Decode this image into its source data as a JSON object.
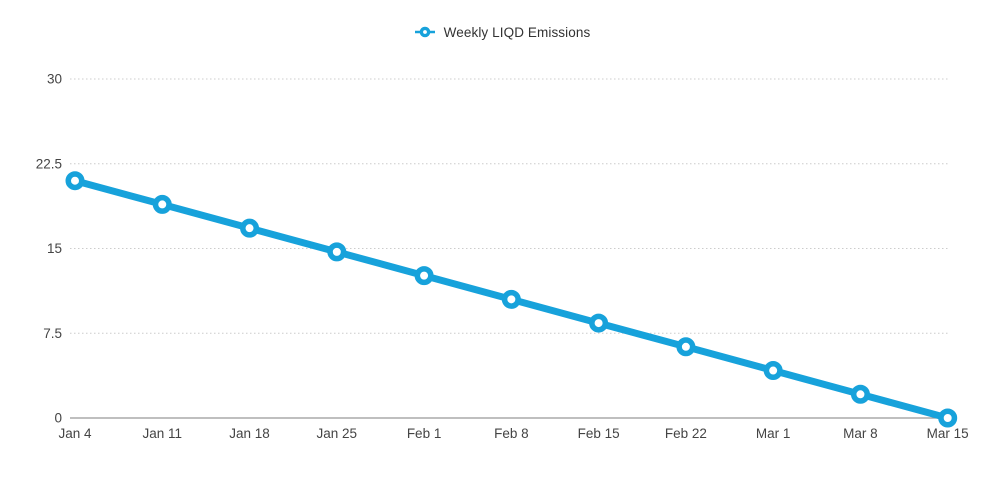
{
  "legend": {
    "label": "Weekly LIQD Emissions"
  },
  "colors": {
    "series": "#17A2DB",
    "grid": "#cccccc",
    "axis_line": "#999999",
    "tick_label": "#444444",
    "legend_text": "#333333",
    "background": "#ffffff",
    "marker_fill": "#ffffff"
  },
  "chart_data": {
    "type": "line",
    "title": "",
    "xlabel": "",
    "ylabel": "",
    "categories": [
      "Jan 4",
      "Jan 11",
      "Jan 18",
      "Jan 25",
      "Feb 1",
      "Feb 8",
      "Feb 15",
      "Feb 22",
      "Mar 1",
      "Mar 8",
      "Mar 15"
    ],
    "series": [
      {
        "name": "Weekly LIQD Emissions",
        "color": "#17A2DB",
        "values": [
          21,
          18.9,
          16.8,
          14.7,
          12.6,
          10.5,
          8.4,
          6.3,
          4.2,
          2.1,
          0
        ]
      }
    ],
    "y_ticks": [
      0,
      7.5,
      15,
      22.5,
      30
    ],
    "y_tick_labels": [
      "0",
      "7.5",
      "15",
      "22.5",
      "30"
    ],
    "ylim": [
      0,
      30
    ],
    "grid": "horizontal-dotted",
    "legend_position": "top-center",
    "marker": "ring"
  }
}
